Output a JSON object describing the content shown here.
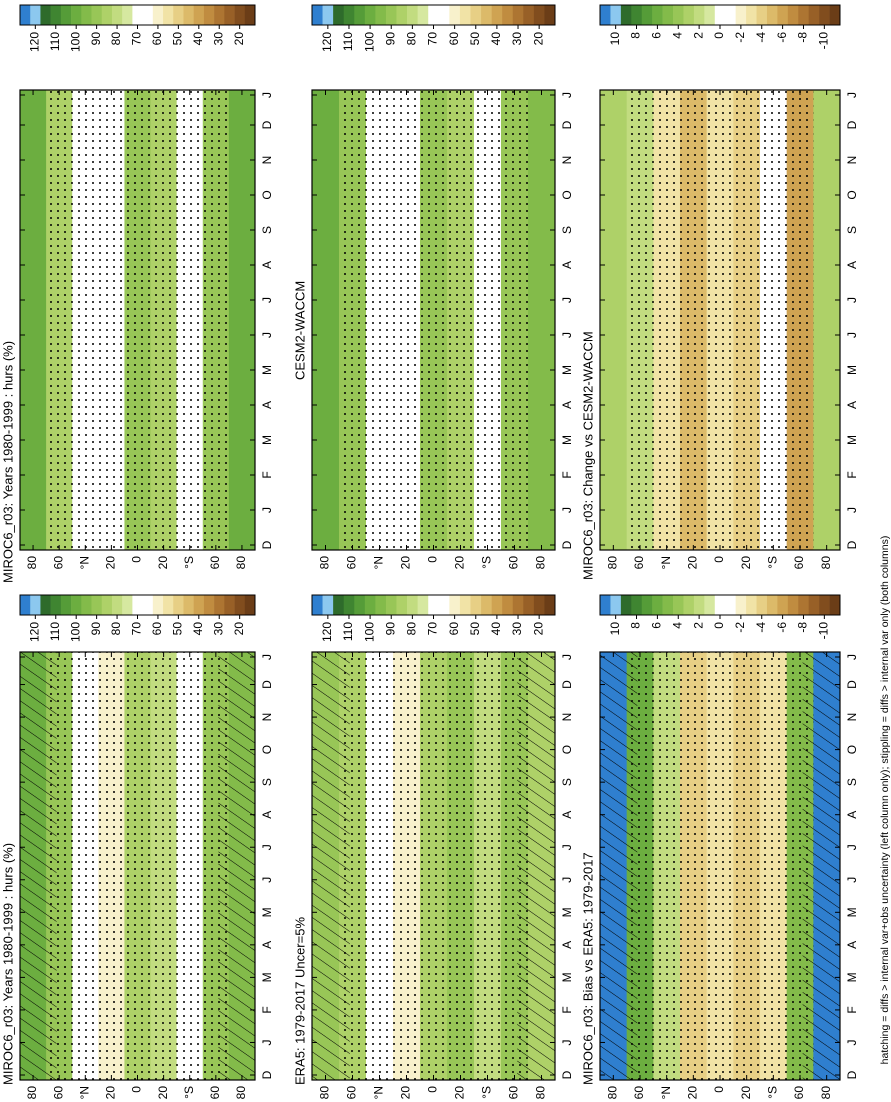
{
  "chart_data": [
    {
      "type": "contour",
      "title": "MIROC6_r03: Years 1980-1999 : hurs (%)",
      "categories": [
        "D",
        "J",
        "F",
        "M",
        "A",
        "M",
        "J",
        "J",
        "A",
        "S",
        "O",
        "N",
        "D",
        "J"
      ],
      "ylim": [
        -90,
        90
      ],
      "yticks": [
        {
          "value": 80,
          "label": "80"
        },
        {
          "value": 60,
          "label": "60"
        },
        {
          "value": 40,
          "label": "°N"
        },
        {
          "value": 20,
          "label": "20"
        },
        0,
        {
          "value": -20,
          "label": "20"
        },
        {
          "value": -40,
          "label": "°S"
        },
        {
          "value": -60,
          "label": "60"
        },
        {
          "value": -80,
          "label": "80"
        }
      ],
      "colorbar": {
        "clim": [
          127.5,
          12.5
        ],
        "ticks": [
          120,
          110,
          100,
          90,
          80,
          70,
          60,
          50,
          40,
          30,
          20
        ],
        "colors": [
          "#2f7fcf",
          "#8cc8ef",
          "#2e6b2b",
          "#3f8531",
          "#559c38",
          "#6cae40",
          "#83bb4a",
          "#98c657",
          "#aed168",
          "#c2dc80",
          "#d6e8a0",
          "#ffffff",
          "#ffffff",
          "#f8f1cc",
          "#f1e3a6",
          "#e7cf85",
          "#dcba69",
          "#cfa352",
          "#c08c40",
          "#ad7532",
          "#986027",
          "#814d1e",
          "#6b3d17"
        ]
      },
      "band_colors": [
        "#6cae40",
        "#98c657",
        "#ffffff",
        "#f8f1cc",
        "#aed168",
        "#c2dc80",
        "#ffffff",
        "#98c657",
        "#83bb4a"
      ],
      "hatching": true,
      "stippling": true
    },
    {
      "type": "contour",
      "title": "MIROC6_r03: Years 1980-1999 : hurs (%)",
      "categories": [
        "D",
        "J",
        "F",
        "M",
        "A",
        "M",
        "J",
        "J",
        "A",
        "S",
        "O",
        "N",
        "D",
        "J"
      ],
      "ylim": [
        -90,
        90
      ],
      "yticks": [
        {
          "value": 80,
          "label": "80"
        },
        {
          "value": 60,
          "label": "60"
        },
        {
          "value": 40,
          "label": "°N"
        },
        {
          "value": 20,
          "label": "20"
        },
        0,
        {
          "value": -20,
          "label": "20"
        },
        {
          "value": -40,
          "label": "°S"
        },
        {
          "value": -60,
          "label": "60"
        },
        {
          "value": -80,
          "label": "80"
        }
      ],
      "colorbar": {
        "clim": [
          127.5,
          12.5
        ],
        "ticks": [
          120,
          110,
          100,
          90,
          80,
          70,
          60,
          50,
          40,
          30,
          20
        ],
        "colors": [
          "#2f7fcf",
          "#8cc8ef",
          "#2e6b2b",
          "#3f8531",
          "#559c38",
          "#6cae40",
          "#83bb4a",
          "#98c657",
          "#aed168",
          "#c2dc80",
          "#d6e8a0",
          "#ffffff",
          "#ffffff",
          "#f8f1cc",
          "#f1e3a6",
          "#e7cf85",
          "#dcba69",
          "#cfa352",
          "#c08c40",
          "#ad7532",
          "#986027",
          "#814d1e",
          "#6b3d17"
        ]
      },
      "band_colors": [
        "#6cae40",
        "#aed168",
        "#ffffff",
        "#ffffff",
        "#98c657",
        "#aed168",
        "#ffffff",
        "#98c657",
        "#6cae40"
      ],
      "hatching": false,
      "stippling": true
    },
    {
      "type": "contour",
      "title": "ERA5: 1979-2017 Uncer=5%",
      "categories": [
        "D",
        "J",
        "F",
        "M",
        "A",
        "M",
        "J",
        "J",
        "A",
        "S",
        "O",
        "N",
        "D",
        "J"
      ],
      "ylim": [
        -90,
        90
      ],
      "yticks": [
        {
          "value": 80,
          "label": "80"
        },
        {
          "value": 60,
          "label": "60"
        },
        {
          "value": 40,
          "label": "°N"
        },
        {
          "value": 20,
          "label": "20"
        },
        0,
        {
          "value": -20,
          "label": "20"
        },
        {
          "value": -40,
          "label": "°S"
        },
        {
          "value": -60,
          "label": "60"
        },
        {
          "value": -80,
          "label": "80"
        }
      ],
      "colorbar": {
        "clim": [
          127.5,
          12.5
        ],
        "ticks": [
          120,
          110,
          100,
          90,
          80,
          70,
          60,
          50,
          40,
          30,
          20
        ],
        "colors": [
          "#2f7fcf",
          "#8cc8ef",
          "#2e6b2b",
          "#3f8531",
          "#559c38",
          "#6cae40",
          "#83bb4a",
          "#98c657",
          "#aed168",
          "#c2dc80",
          "#d6e8a0",
          "#ffffff",
          "#ffffff",
          "#f8f1cc",
          "#f1e3a6",
          "#e7cf85",
          "#dcba69",
          "#cfa352",
          "#c08c40",
          "#ad7532",
          "#986027",
          "#814d1e",
          "#6b3d17"
        ]
      },
      "band_colors": [
        "#98c657",
        "#aed168",
        "#ffffff",
        "#f8f1cc",
        "#aed168",
        "#98c657",
        "#c2dc80",
        "#98c657",
        "#aed168"
      ],
      "hatching": true,
      "stippling": true
    },
    {
      "type": "contour",
      "title": "CESM2-WACCM",
      "categories": [
        "D",
        "J",
        "F",
        "M",
        "A",
        "M",
        "J",
        "J",
        "A",
        "S",
        "O",
        "N",
        "D",
        "J"
      ],
      "ylim": [
        -90,
        90
      ],
      "yticks": [
        {
          "value": 80,
          "label": "80"
        },
        {
          "value": 60,
          "label": "60"
        },
        {
          "value": 40,
          "label": "°N"
        },
        {
          "value": 20,
          "label": "20"
        },
        0,
        {
          "value": -20,
          "label": "20"
        },
        {
          "value": -40,
          "label": "°S"
        },
        {
          "value": -60,
          "label": "60"
        },
        {
          "value": -80,
          "label": "80"
        }
      ],
      "colorbar": {
        "clim": [
          127.5,
          12.5
        ],
        "ticks": [
          120,
          110,
          100,
          90,
          80,
          70,
          60,
          50,
          40,
          30,
          20
        ],
        "colors": [
          "#2f7fcf",
          "#8cc8ef",
          "#2e6b2b",
          "#3f8531",
          "#559c38",
          "#6cae40",
          "#83bb4a",
          "#98c657",
          "#aed168",
          "#c2dc80",
          "#d6e8a0",
          "#ffffff",
          "#ffffff",
          "#f8f1cc",
          "#f1e3a6",
          "#e7cf85",
          "#dcba69",
          "#cfa352",
          "#c08c40",
          "#ad7532",
          "#986027",
          "#814d1e",
          "#6b3d17"
        ]
      },
      "band_colors": [
        "#6cae40",
        "#98c657",
        "#ffffff",
        "#ffffff",
        "#98c657",
        "#aed168",
        "#ffffff",
        "#98c657",
        "#83bb4a"
      ],
      "hatching": false,
      "stippling": true
    },
    {
      "type": "contour",
      "title": "MIROC6_r03: Bias vs ERA5: 1979-2017",
      "categories": [
        "D",
        "J",
        "F",
        "M",
        "A",
        "M",
        "J",
        "J",
        "A",
        "S",
        "O",
        "N",
        "D",
        "J"
      ],
      "ylim": [
        -90,
        90
      ],
      "yticks": [
        {
          "value": 80,
          "label": "80"
        },
        {
          "value": 60,
          "label": "60"
        },
        {
          "value": 40,
          "label": "°N"
        },
        {
          "value": 20,
          "label": "20"
        },
        0,
        {
          "value": -20,
          "label": "20"
        },
        {
          "value": -40,
          "label": "°S"
        },
        {
          "value": -60,
          "label": "60"
        },
        {
          "value": -80,
          "label": "80"
        }
      ],
      "colorbar": {
        "clim": [
          11.5,
          -11.5
        ],
        "ticks": [
          10,
          8,
          6,
          4,
          2,
          0,
          -2,
          -4,
          -6,
          -8,
          -10
        ],
        "colors": [
          "#2f7fcf",
          "#8cc8ef",
          "#2e6b2b",
          "#3f8531",
          "#559c38",
          "#6cae40",
          "#83bb4a",
          "#98c657",
          "#aed168",
          "#c2dc80",
          "#d6e8a0",
          "#ffffff",
          "#ffffff",
          "#f8f1cc",
          "#f1e3a6",
          "#e7cf85",
          "#dcba69",
          "#cfa352",
          "#c08c40",
          "#ad7532",
          "#986027",
          "#814d1e",
          "#6b3d17"
        ]
      },
      "band_colors": [
        "#2f7fcf",
        "#6cae40",
        "#c2dc80",
        "#e7cf85",
        "#f1e3a6",
        "#e7cf85",
        "#f1e3a6",
        "#83bb4a",
        "#2f7fcf"
      ],
      "hatching": true,
      "stippling": true
    },
    {
      "type": "contour",
      "title": "MIROC6_r03: Change vs CESM2-WACCM",
      "categories": [
        "D",
        "J",
        "F",
        "M",
        "A",
        "M",
        "J",
        "J",
        "A",
        "S",
        "O",
        "N",
        "D",
        "J"
      ],
      "ylim": [
        -90,
        90
      ],
      "yticks": [
        {
          "value": 80,
          "label": "80"
        },
        {
          "value": 60,
          "label": "60"
        },
        {
          "value": 40,
          "label": "°N"
        },
        {
          "value": 20,
          "label": "20"
        },
        0,
        {
          "value": -20,
          "label": "20"
        },
        {
          "value": -40,
          "label": "°S"
        },
        {
          "value": -60,
          "label": "60"
        },
        {
          "value": -80,
          "label": "80"
        }
      ],
      "colorbar": {
        "clim": [
          11.5,
          -11.5
        ],
        "ticks": [
          10,
          8,
          6,
          4,
          2,
          0,
          -2,
          -4,
          -6,
          -8,
          -10
        ],
        "colors": [
          "#2f7fcf",
          "#8cc8ef",
          "#2e6b2b",
          "#3f8531",
          "#559c38",
          "#6cae40",
          "#83bb4a",
          "#98c657",
          "#aed168",
          "#c2dc80",
          "#d6e8a0",
          "#ffffff",
          "#ffffff",
          "#f8f1cc",
          "#f1e3a6",
          "#e7cf85",
          "#dcba69",
          "#cfa352",
          "#c08c40",
          "#ad7532",
          "#986027",
          "#814d1e",
          "#6b3d17"
        ]
      },
      "band_colors": [
        "#aed168",
        "#c2dc80",
        "#f1e3a6",
        "#dcba69",
        "#f1e3a6",
        "#e7cf85",
        "#ffffff",
        "#cfa352",
        "#aed168"
      ],
      "hatching": false,
      "stippling": true
    }
  ],
  "footnote": "hatching = diffs > internal var+obs uncertainty (left column only); stippling = diffs > internal var only (both columns)"
}
